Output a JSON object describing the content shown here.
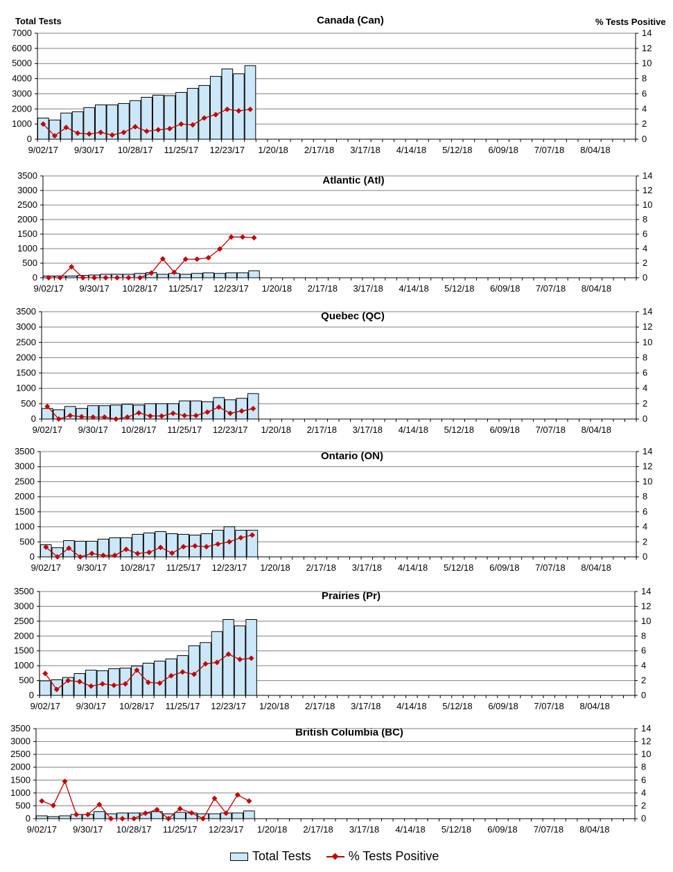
{
  "chart_data": {
    "type": "bar+line",
    "left_axis_label": "Total Tests",
    "right_axis_label": "% Tests Positive",
    "x_tick_labels": [
      "9/02/17",
      "9/30/17",
      "10/28/17",
      "11/25/17",
      "12/23/17",
      "1/20/18",
      "2/17/18",
      "3/17/18",
      "4/14/18",
      "5/12/18",
      "6/09/18",
      "7/07/18",
      "8/04/18"
    ],
    "legend": {
      "bars": "Total Tests",
      "line": "% Tests Positive",
      "placement": "bottom"
    },
    "colors": {
      "bars": "#cce8f8",
      "line": "#c00000",
      "grid": "#808080"
    },
    "grid": true,
    "panels": [
      {
        "title": "Canada (Can)",
        "ylim": [
          0,
          7000
        ],
        "y2lim": [
          0,
          14
        ],
        "left_ticks": [
          "0",
          "1000",
          "2000",
          "3000",
          "4000",
          "5000",
          "6000",
          "7000"
        ],
        "right_ticks": [
          "0",
          "2",
          "4",
          "6",
          "8",
          "10",
          "12",
          "14"
        ],
        "total_tests": [
          1400,
          1270,
          1730,
          1820,
          2090,
          2270,
          2270,
          2360,
          2550,
          2770,
          2910,
          2880,
          3090,
          3360,
          3550,
          4150,
          4640,
          4320,
          4860
        ],
        "pct_positive": [
          2.0,
          0.45,
          1.55,
          0.8,
          0.7,
          0.9,
          0.55,
          0.9,
          1.65,
          1.05,
          1.25,
          1.4,
          2.0,
          1.9,
          2.8,
          3.25,
          3.95,
          3.75,
          3.95
        ]
      },
      {
        "title": "Atlantic (Atl)",
        "ylim": [
          0,
          3500
        ],
        "y2lim": [
          0,
          14
        ],
        "left_ticks": [
          "0",
          "500",
          "1000",
          "1500",
          "2000",
          "2500",
          "3000",
          "3500"
        ],
        "right_ticks": [
          "0",
          "2",
          "4",
          "6",
          "8",
          "10",
          "12",
          "14"
        ],
        "total_tests": [
          60,
          60,
          60,
          80,
          95,
          120,
          120,
          120,
          150,
          175,
          120,
          150,
          120,
          150,
          170,
          150,
          170,
          170,
          240
        ],
        "pct_positive": [
          0,
          0,
          1.5,
          0,
          0,
          0,
          0,
          0,
          0,
          0.65,
          2.6,
          0.75,
          2.55,
          2.55,
          2.75,
          3.95,
          5.6,
          5.6,
          5.5
        ]
      },
      {
        "title": "Quebec (QC)",
        "ylim": [
          0,
          3500
        ],
        "y2lim": [
          0,
          14
        ],
        "left_ticks": [
          "0",
          "500",
          "1000",
          "1500",
          "2000",
          "2500",
          "3000",
          "3500"
        ],
        "right_ticks": [
          "0",
          "2",
          "4",
          "6",
          "8",
          "10",
          "12",
          "14"
        ],
        "total_tests": [
          345,
          300,
          410,
          345,
          435,
          435,
          455,
          480,
          455,
          500,
          500,
          500,
          590,
          590,
          565,
          700,
          630,
          675,
          830
        ],
        "pct_positive": [
          1.65,
          0,
          0.45,
          0.3,
          0.25,
          0.25,
          0,
          0.25,
          0.8,
          0.4,
          0.4,
          0.75,
          0.45,
          0.45,
          0.9,
          1.55,
          0.75,
          1.05,
          1.35
        ]
      },
      {
        "title": "Ontario (ON)",
        "ylim": [
          0,
          3500
        ],
        "y2lim": [
          0,
          14
        ],
        "left_ticks": [
          "0",
          "500",
          "1000",
          "1500",
          "2000",
          "2500",
          "3000",
          "3500"
        ],
        "right_ticks": [
          "0",
          "2",
          "4",
          "6",
          "8",
          "10",
          "12",
          "14"
        ],
        "total_tests": [
          405,
          305,
          540,
          520,
          520,
          590,
          635,
          635,
          750,
          795,
          840,
          770,
          750,
          725,
          770,
          885,
          1000,
          885,
          885
        ],
        "pct_positive": [
          1.3,
          0,
          1.15,
          0,
          0.45,
          0.2,
          0.2,
          1.0,
          0.45,
          0.6,
          1.25,
          0.5,
          1.35,
          1.45,
          1.35,
          1.7,
          2.0,
          2.55,
          2.9
        ]
      },
      {
        "title": "Prairies (Pr)",
        "ylim": [
          0,
          3500
        ],
        "y2lim": [
          0,
          14
        ],
        "left_ticks": [
          "0",
          "500",
          "1000",
          "1500",
          "2000",
          "2500",
          "3000",
          "3500"
        ],
        "right_ticks": [
          "0",
          "2",
          "4",
          "6",
          "8",
          "10",
          "12",
          "14"
        ],
        "total_tests": [
          490,
          525,
          605,
          735,
          850,
          830,
          900,
          920,
          990,
          1085,
          1155,
          1230,
          1340,
          1670,
          1780,
          2150,
          2555,
          2340,
          2555
        ],
        "pct_positive": [
          2.95,
          0.8,
          2.0,
          1.85,
          1.25,
          1.55,
          1.35,
          1.55,
          3.4,
          1.75,
          1.65,
          2.65,
          3.15,
          2.85,
          4.25,
          4.45,
          5.55,
          4.85,
          5.0
        ]
      },
      {
        "title": "British Columbia (BC)",
        "ylim": [
          0,
          3500
        ],
        "y2lim": [
          0,
          14
        ],
        "left_ticks": [
          "0",
          "500",
          "1000",
          "1500",
          "2000",
          "2500",
          "3000",
          "3500"
        ],
        "right_ticks": [
          "0",
          "2",
          "4",
          "6",
          "8",
          "10",
          "12",
          "14"
        ],
        "total_tests": [
          110,
          80,
          110,
          165,
          165,
          275,
          190,
          220,
          220,
          220,
          275,
          190,
          245,
          220,
          190,
          190,
          220,
          220,
          300
        ],
        "pct_positive": [
          2.75,
          2.05,
          5.8,
          0.65,
          0.65,
          2.2,
          0,
          0,
          0,
          0.85,
          1.4,
          0,
          1.55,
          0.9,
          0,
          3.15,
          0.85,
          3.7,
          2.75
        ]
      }
    ]
  }
}
